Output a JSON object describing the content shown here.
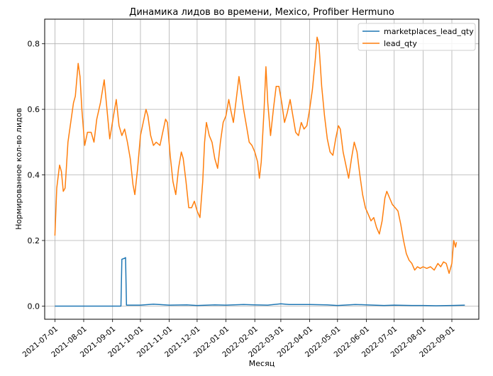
{
  "chart_data": {
    "type": "line",
    "title": "Динамика лидов во времени, Mexico, Profiber Hermuno",
    "xlabel": "Месяц",
    "ylabel": "Нормированное кол-во лидов",
    "x_range": [
      "2021-06-20",
      "2022-09-30"
    ],
    "ylim": [
      -0.04,
      0.875
    ],
    "grid": true,
    "legend_position": "top-right",
    "x_ticks": [
      "2021-07-01",
      "2021-08-01",
      "2021-09-01",
      "2021-10-01",
      "2021-11-01",
      "2021-12-01",
      "2022-01-01",
      "2022-02-01",
      "2022-03-01",
      "2022-04-01",
      "2022-05-01",
      "2022-06-01",
      "2022-07-01",
      "2022-08-01",
      "2022-09-01"
    ],
    "y_ticks": [
      0.0,
      0.2,
      0.4,
      0.6,
      0.8
    ],
    "y_tick_labels": [
      "0.0",
      "0.2",
      "0.4",
      "0.6",
      "0.8"
    ],
    "series": [
      {
        "name": "marketplaces_lead_qty",
        "color": "#1f77b4",
        "points": [
          [
            "2021-07-01",
            0.0
          ],
          [
            "2021-08-01",
            0.0
          ],
          [
            "2021-09-01",
            0.0
          ],
          [
            "2021-09-10",
            0.0
          ],
          [
            "2021-09-11",
            0.143
          ],
          [
            "2021-09-14",
            0.146
          ],
          [
            "2021-09-15",
            0.148
          ],
          [
            "2021-09-16",
            0.003
          ],
          [
            "2021-10-01",
            0.003
          ],
          [
            "2021-10-15",
            0.006
          ],
          [
            "2021-11-01",
            0.003
          ],
          [
            "2021-11-20",
            0.004
          ],
          [
            "2021-12-01",
            0.002
          ],
          [
            "2021-12-20",
            0.004
          ],
          [
            "2022-01-01",
            0.003
          ],
          [
            "2022-01-20",
            0.005
          ],
          [
            "2022-02-01",
            0.004
          ],
          [
            "2022-02-15",
            0.003
          ],
          [
            "2022-03-01",
            0.007
          ],
          [
            "2022-03-10",
            0.005
          ],
          [
            "2022-04-01",
            0.005
          ],
          [
            "2022-04-20",
            0.004
          ],
          [
            "2022-05-01",
            0.002
          ],
          [
            "2022-05-20",
            0.005
          ],
          [
            "2022-06-01",
            0.004
          ],
          [
            "2022-06-20",
            0.002
          ],
          [
            "2022-07-01",
            0.003
          ],
          [
            "2022-07-20",
            0.002
          ],
          [
            "2022-08-01",
            0.002
          ],
          [
            "2022-08-15",
            0.001
          ],
          [
            "2022-09-01",
            0.002
          ],
          [
            "2022-09-15",
            0.003
          ]
        ]
      },
      {
        "name": "lead_qty",
        "color": "#ff7f0e",
        "points": [
          [
            "2021-07-01",
            0.215
          ],
          [
            "2021-07-03",
            0.36
          ],
          [
            "2021-07-06",
            0.43
          ],
          [
            "2021-07-08",
            0.41
          ],
          [
            "2021-07-10",
            0.35
          ],
          [
            "2021-07-12",
            0.36
          ],
          [
            "2021-07-15",
            0.5
          ],
          [
            "2021-07-18",
            0.56
          ],
          [
            "2021-07-21",
            0.62
          ],
          [
            "2021-07-23",
            0.64
          ],
          [
            "2021-07-26",
            0.74
          ],
          [
            "2021-07-28",
            0.7
          ],
          [
            "2021-07-30",
            0.6
          ],
          [
            "2021-08-02",
            0.49
          ],
          [
            "2021-08-05",
            0.53
          ],
          [
            "2021-08-09",
            0.53
          ],
          [
            "2021-08-12",
            0.5
          ],
          [
            "2021-08-15",
            0.57
          ],
          [
            "2021-08-19",
            0.62
          ],
          [
            "2021-08-23",
            0.69
          ],
          [
            "2021-08-26",
            0.6
          ],
          [
            "2021-08-29",
            0.51
          ],
          [
            "2021-09-02",
            0.58
          ],
          [
            "2021-09-05",
            0.63
          ],
          [
            "2021-09-08",
            0.55
          ],
          [
            "2021-09-11",
            0.52
          ],
          [
            "2021-09-14",
            0.54
          ],
          [
            "2021-09-17",
            0.5
          ],
          [
            "2021-09-20",
            0.45
          ],
          [
            "2021-09-23",
            0.37
          ],
          [
            "2021-09-25",
            0.34
          ],
          [
            "2021-09-28",
            0.42
          ],
          [
            "2021-10-01",
            0.52
          ],
          [
            "2021-10-04",
            0.56
          ],
          [
            "2021-10-07",
            0.6
          ],
          [
            "2021-10-09",
            0.58
          ],
          [
            "2021-10-12",
            0.52
          ],
          [
            "2021-10-15",
            0.49
          ],
          [
            "2021-10-18",
            0.5
          ],
          [
            "2021-10-22",
            0.49
          ],
          [
            "2021-10-25",
            0.53
          ],
          [
            "2021-10-28",
            0.57
          ],
          [
            "2021-10-30",
            0.56
          ],
          [
            "2021-11-02",
            0.46
          ],
          [
            "2021-11-05",
            0.38
          ],
          [
            "2021-11-08",
            0.34
          ],
          [
            "2021-11-11",
            0.42
          ],
          [
            "2021-11-14",
            0.47
          ],
          [
            "2021-11-16",
            0.45
          ],
          [
            "2021-11-19",
            0.38
          ],
          [
            "2021-11-22",
            0.3
          ],
          [
            "2021-11-25",
            0.3
          ],
          [
            "2021-11-28",
            0.32
          ],
          [
            "2021-12-01",
            0.29
          ],
          [
            "2021-12-04",
            0.27
          ],
          [
            "2021-12-07",
            0.38
          ],
          [
            "2021-12-09",
            0.5
          ],
          [
            "2021-12-11",
            0.56
          ],
          [
            "2021-12-14",
            0.52
          ],
          [
            "2021-12-17",
            0.5
          ],
          [
            "2021-12-20",
            0.45
          ],
          [
            "2021-12-23",
            0.42
          ],
          [
            "2021-12-26",
            0.5
          ],
          [
            "2021-12-29",
            0.56
          ],
          [
            "2022-01-01",
            0.58
          ],
          [
            "2022-01-04",
            0.63
          ],
          [
            "2022-01-06",
            0.6
          ],
          [
            "2022-01-09",
            0.56
          ],
          [
            "2022-01-12",
            0.63
          ],
          [
            "2022-01-15",
            0.7
          ],
          [
            "2022-01-17",
            0.66
          ],
          [
            "2022-01-20",
            0.6
          ],
          [
            "2022-01-23",
            0.55
          ],
          [
            "2022-01-26",
            0.5
          ],
          [
            "2022-01-29",
            0.49
          ],
          [
            "2022-02-01",
            0.47
          ],
          [
            "2022-02-04",
            0.44
          ],
          [
            "2022-02-06",
            0.39
          ],
          [
            "2022-02-08",
            0.44
          ],
          [
            "2022-02-11",
            0.6
          ],
          [
            "2022-02-13",
            0.73
          ],
          [
            "2022-02-15",
            0.62
          ],
          [
            "2022-02-18",
            0.52
          ],
          [
            "2022-02-21",
            0.6
          ],
          [
            "2022-02-24",
            0.67
          ],
          [
            "2022-02-27",
            0.67
          ],
          [
            "2022-03-02",
            0.62
          ],
          [
            "2022-03-05",
            0.56
          ],
          [
            "2022-03-08",
            0.59
          ],
          [
            "2022-03-11",
            0.63
          ],
          [
            "2022-03-14",
            0.58
          ],
          [
            "2022-03-17",
            0.53
          ],
          [
            "2022-03-20",
            0.52
          ],
          [
            "2022-03-23",
            0.56
          ],
          [
            "2022-03-26",
            0.54
          ],
          [
            "2022-03-29",
            0.55
          ],
          [
            "2022-04-01",
            0.6
          ],
          [
            "2022-04-04",
            0.66
          ],
          [
            "2022-04-07",
            0.75
          ],
          [
            "2022-04-09",
            0.82
          ],
          [
            "2022-04-11",
            0.8
          ],
          [
            "2022-04-14",
            0.67
          ],
          [
            "2022-04-17",
            0.58
          ],
          [
            "2022-04-20",
            0.51
          ],
          [
            "2022-04-23",
            0.47
          ],
          [
            "2022-04-26",
            0.46
          ],
          [
            "2022-04-29",
            0.51
          ],
          [
            "2022-05-02",
            0.55
          ],
          [
            "2022-05-04",
            0.54
          ],
          [
            "2022-05-07",
            0.47
          ],
          [
            "2022-05-10",
            0.43
          ],
          [
            "2022-05-13",
            0.39
          ],
          [
            "2022-05-16",
            0.45
          ],
          [
            "2022-05-19",
            0.5
          ],
          [
            "2022-05-22",
            0.47
          ],
          [
            "2022-05-25",
            0.4
          ],
          [
            "2022-05-28",
            0.34
          ],
          [
            "2022-05-31",
            0.3
          ],
          [
            "2022-06-03",
            0.28
          ],
          [
            "2022-06-06",
            0.26
          ],
          [
            "2022-06-09",
            0.27
          ],
          [
            "2022-06-12",
            0.24
          ],
          [
            "2022-06-15",
            0.22
          ],
          [
            "2022-06-18",
            0.26
          ],
          [
            "2022-06-21",
            0.33
          ],
          [
            "2022-06-23",
            0.35
          ],
          [
            "2022-06-26",
            0.33
          ],
          [
            "2022-06-29",
            0.31
          ],
          [
            "2022-07-02",
            0.3
          ],
          [
            "2022-07-05",
            0.29
          ],
          [
            "2022-07-08",
            0.25
          ],
          [
            "2022-07-11",
            0.2
          ],
          [
            "2022-07-14",
            0.16
          ],
          [
            "2022-07-17",
            0.14
          ],
          [
            "2022-07-20",
            0.13
          ],
          [
            "2022-07-23",
            0.11
          ],
          [
            "2022-07-26",
            0.12
          ],
          [
            "2022-07-29",
            0.115
          ],
          [
            "2022-08-01",
            0.12
          ],
          [
            "2022-08-05",
            0.115
          ],
          [
            "2022-08-09",
            0.12
          ],
          [
            "2022-08-13",
            0.11
          ],
          [
            "2022-08-17",
            0.13
          ],
          [
            "2022-08-20",
            0.12
          ],
          [
            "2022-08-23",
            0.135
          ],
          [
            "2022-08-26",
            0.13
          ],
          [
            "2022-08-29",
            0.1
          ],
          [
            "2022-09-01",
            0.13
          ],
          [
            "2022-09-03",
            0.2
          ],
          [
            "2022-09-05",
            0.18
          ],
          [
            "2022-09-06",
            0.195
          ]
        ]
      }
    ]
  }
}
